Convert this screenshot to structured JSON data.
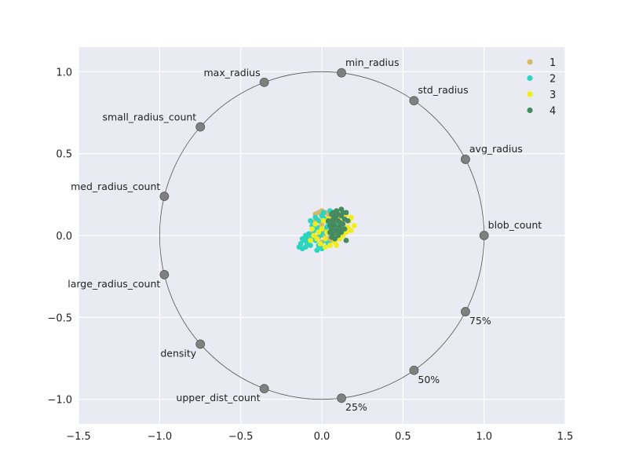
{
  "chart_data": {
    "type": "scatter",
    "title": "",
    "xlabel": "",
    "ylabel": "",
    "xlim": [
      -1.5,
      1.5
    ],
    "ylim": [
      -1.15,
      1.15
    ],
    "xticks": [
      "−1.5",
      "−1.0",
      "−0.5",
      "0.0",
      "0.5",
      "1.0",
      "1.5"
    ],
    "xtick_values": [
      -1.5,
      -1.0,
      -0.5,
      0.0,
      0.5,
      1.0,
      1.5
    ],
    "yticks": [
      "1.0",
      "0.5",
      "0.0",
      "−0.5",
      "−1.0"
    ],
    "ytick_values": [
      1.0,
      0.5,
      0.0,
      -0.5,
      -1.0
    ],
    "grid": true,
    "legend_position": "top-right",
    "unit_circle": true,
    "anchors": [
      {
        "label": "blob_count",
        "x": 1.0,
        "y": 0.0
      },
      {
        "label": "avg_radius",
        "x": 0.885,
        "y": 0.465
      },
      {
        "label": "std_radius",
        "x": 0.568,
        "y": 0.823
      },
      {
        "label": "min_radius",
        "x": 0.121,
        "y": 0.993
      },
      {
        "label": "max_radius",
        "x": -0.355,
        "y": 0.935
      },
      {
        "label": "small_radius_count",
        "x": -0.749,
        "y": 0.663
      },
      {
        "label": "med_radius_count",
        "x": -0.971,
        "y": 0.239
      },
      {
        "label": "large_radius_count",
        "x": -0.971,
        "y": -0.239
      },
      {
        "label": "density",
        "x": -0.749,
        "y": -0.663
      },
      {
        "label": "upper_dist_count",
        "x": -0.355,
        "y": -0.935
      },
      {
        "label": "25%",
        "x": 0.121,
        "y": -0.993
      },
      {
        "label": "50%",
        "x": 0.568,
        "y": -0.823
      },
      {
        "label": "75%",
        "x": 0.885,
        "y": -0.465
      }
    ],
    "series": [
      {
        "name": "1",
        "color": "#d4b86a",
        "points": [
          [
            -0.04,
            0.13
          ],
          [
            -0.02,
            0.14
          ],
          [
            0.0,
            0.15
          ],
          [
            0.02,
            0.14
          ],
          [
            0.04,
            0.13
          ],
          [
            -0.03,
            0.1
          ],
          [
            0.01,
            0.11
          ],
          [
            0.03,
            0.09
          ],
          [
            -0.05,
            0.08
          ],
          [
            0.0,
            0.07
          ],
          [
            0.05,
            0.11
          ],
          [
            0.07,
            0.12
          ],
          [
            -0.01,
            0.05
          ],
          [
            0.02,
            0.03
          ],
          [
            0.04,
            0.06
          ],
          [
            -0.03,
            0.04
          ],
          [
            0.06,
            0.09
          ],
          [
            0.08,
            0.05
          ],
          [
            0.01,
            0.0
          ],
          [
            -0.02,
            -0.01
          ],
          [
            0.03,
            -0.02
          ],
          [
            0.05,
            0.02
          ],
          [
            0.1,
            0.08
          ],
          [
            0.09,
            0.13
          ],
          [
            -0.06,
            0.01
          ],
          [
            0.0,
            -0.04
          ],
          [
            0.06,
            -0.03
          ],
          [
            0.12,
            0.04
          ]
        ]
      },
      {
        "name": "2",
        "color": "#2dd4bf",
        "points": [
          [
            -0.12,
            -0.08
          ],
          [
            -0.1,
            -0.07
          ],
          [
            -0.08,
            -0.04
          ],
          [
            -0.13,
            -0.05
          ],
          [
            -0.09,
            -0.02
          ],
          [
            -0.06,
            -0.01
          ],
          [
            -0.04,
            -0.03
          ],
          [
            -0.02,
            -0.06
          ],
          [
            0.0,
            -0.08
          ],
          [
            -0.03,
            -0.09
          ],
          [
            -0.07,
            -0.06
          ],
          [
            -0.11,
            -0.03
          ],
          [
            -0.08,
            0.01
          ],
          [
            -0.05,
            0.03
          ],
          [
            -0.03,
            0.05
          ],
          [
            -0.06,
            0.06
          ],
          [
            -0.02,
            0.09
          ],
          [
            0.0,
            0.12
          ],
          [
            0.02,
            0.1
          ],
          [
            0.04,
            0.08
          ],
          [
            0.03,
            0.05
          ],
          [
            0.01,
            0.02
          ],
          [
            -0.01,
            0.0
          ],
          [
            0.05,
            0.01
          ],
          [
            0.07,
            0.04
          ],
          [
            0.09,
            0.07
          ],
          [
            0.06,
            0.13
          ],
          [
            0.02,
            -0.03
          ],
          [
            0.04,
            -0.05
          ],
          [
            -0.1,
            0.0
          ],
          [
            -0.07,
            0.09
          ],
          [
            -0.04,
            0.11
          ],
          [
            0.08,
            0.11
          ],
          [
            0.1,
            0.02
          ],
          [
            -0.01,
            -0.05
          ],
          [
            -0.09,
            -0.05
          ],
          [
            0.01,
            0.14
          ],
          [
            0.05,
            0.15
          ],
          [
            -0.12,
            -0.02
          ],
          [
            -0.14,
            -0.07
          ]
        ]
      },
      {
        "name": "3",
        "color": "#f2ec1c",
        "points": [
          [
            0.2,
            0.06
          ],
          [
            0.17,
            0.09
          ],
          [
            0.16,
            0.05
          ],
          [
            0.18,
            0.11
          ],
          [
            0.14,
            0.03
          ],
          [
            0.12,
            0.08
          ],
          [
            0.1,
            0.1
          ],
          [
            0.15,
            0.02
          ],
          [
            0.13,
            0.0
          ],
          [
            0.11,
            -0.02
          ],
          [
            0.08,
            -0.04
          ],
          [
            0.05,
            -0.06
          ],
          [
            0.02,
            -0.07
          ],
          [
            -0.01,
            -0.05
          ],
          [
            -0.03,
            -0.02
          ],
          [
            -0.05,
            0.0
          ],
          [
            -0.02,
            0.02
          ],
          [
            0.0,
            0.04
          ],
          [
            0.03,
            0.02
          ],
          [
            0.06,
            0.0
          ],
          [
            0.09,
            0.03
          ],
          [
            0.07,
            0.07
          ],
          [
            0.04,
            0.1
          ],
          [
            0.01,
            0.09
          ],
          [
            -0.04,
            0.07
          ],
          [
            -0.06,
            0.04
          ],
          [
            0.11,
            0.12
          ],
          [
            0.15,
            0.13
          ],
          [
            0.09,
            -0.06
          ],
          [
            0.02,
            -0.02
          ],
          [
            -0.07,
            -0.03
          ],
          [
            0.18,
            0.03
          ]
        ]
      },
      {
        "name": "4",
        "color": "#468a5f",
        "points": [
          [
            0.07,
            0.01
          ],
          [
            0.09,
            0.03
          ],
          [
            0.11,
            0.05
          ],
          [
            0.13,
            0.07
          ],
          [
            0.1,
            0.09
          ],
          [
            0.08,
            0.11
          ],
          [
            0.06,
            0.13
          ],
          [
            0.12,
            0.12
          ],
          [
            0.14,
            0.1
          ],
          [
            0.15,
            0.14
          ],
          [
            0.09,
            0.15
          ],
          [
            0.07,
            0.08
          ],
          [
            0.05,
            0.06
          ],
          [
            0.06,
            0.04
          ],
          [
            0.08,
            0.06
          ],
          [
            0.1,
            0.0
          ],
          [
            0.12,
            0.02
          ],
          [
            0.14,
            0.04
          ],
          [
            0.11,
            0.08
          ],
          [
            0.13,
            0.14
          ],
          [
            0.16,
            0.09
          ],
          [
            0.09,
            0.12
          ],
          [
            0.07,
            0.1
          ],
          [
            0.05,
            0.02
          ],
          [
            0.06,
            -0.01
          ],
          [
            0.08,
            -0.02
          ],
          [
            0.04,
            0.09
          ],
          [
            0.1,
            0.13
          ],
          [
            0.12,
            0.16
          ],
          [
            0.15,
            -0.03
          ],
          [
            0.07,
            0.14
          ],
          [
            0.11,
            0.03
          ]
        ]
      }
    ]
  },
  "legend": [
    {
      "label": "1",
      "color": "#d4b86a"
    },
    {
      "label": "2",
      "color": "#2dd4bf"
    },
    {
      "label": "3",
      "color": "#f2ec1c"
    },
    {
      "label": "4",
      "color": "#468a5f"
    }
  ],
  "colors": {
    "plot_bg": "#eaeaf2",
    "grid": "#ffffff",
    "anchor": "#808080",
    "circle": "#555555"
  }
}
